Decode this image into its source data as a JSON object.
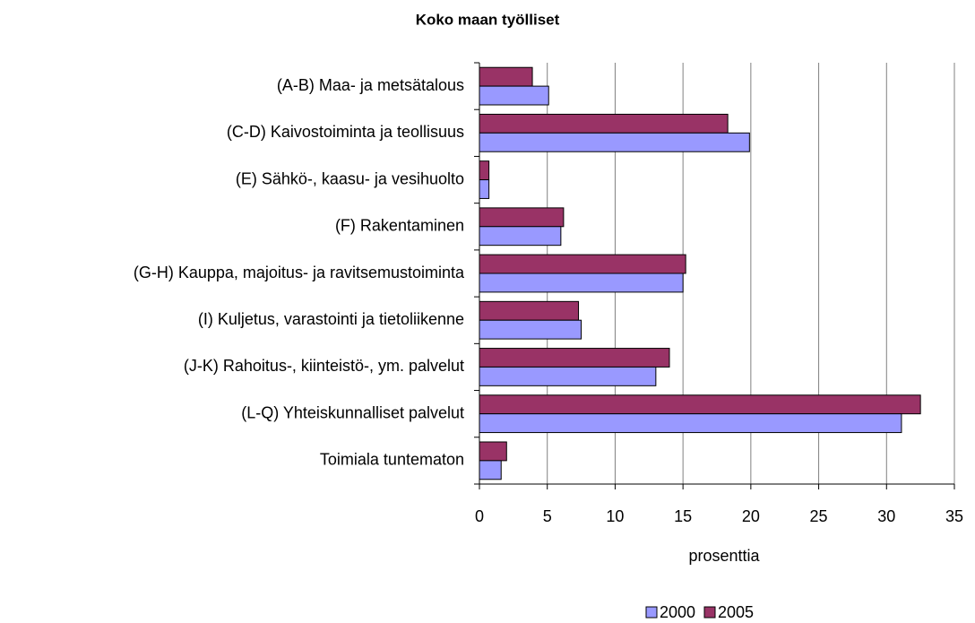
{
  "chart_data": {
    "type": "barh",
    "title": "Koko maan työlliset",
    "xlabel": "prosenttia",
    "categories": [
      "(A-B) Maa- ja metsätalous",
      "(C-D) Kaivostoiminta ja teollisuus",
      "(E) Sähkö-, kaasu- ja vesihuolto",
      "(F) Rakentaminen",
      "(G-H) Kauppa, majoitus- ja ravitsemustoiminta",
      "(I) Kuljetus, varastointi ja tietoliikenne",
      "(J-K) Rahoitus-, kiinteistö-, ym. palvelut",
      "(L-Q) Yhteiskunnalliset palvelut",
      "Toimiala tuntematon"
    ],
    "series": [
      {
        "name": "2000",
        "color": "#9999ff",
        "values": [
          5.1,
          19.9,
          0.7,
          6.0,
          15.0,
          7.5,
          13.0,
          31.1,
          1.6
        ]
      },
      {
        "name": "2005",
        "color": "#993366",
        "values": [
          3.9,
          18.3,
          0.7,
          6.2,
          15.2,
          7.3,
          14.0,
          32.5,
          2.0
        ]
      }
    ],
    "xlim": [
      0,
      35
    ],
    "xticks": [
      0,
      5,
      10,
      15,
      20,
      25,
      30,
      35
    ],
    "grid": true,
    "legend": "bottom"
  }
}
